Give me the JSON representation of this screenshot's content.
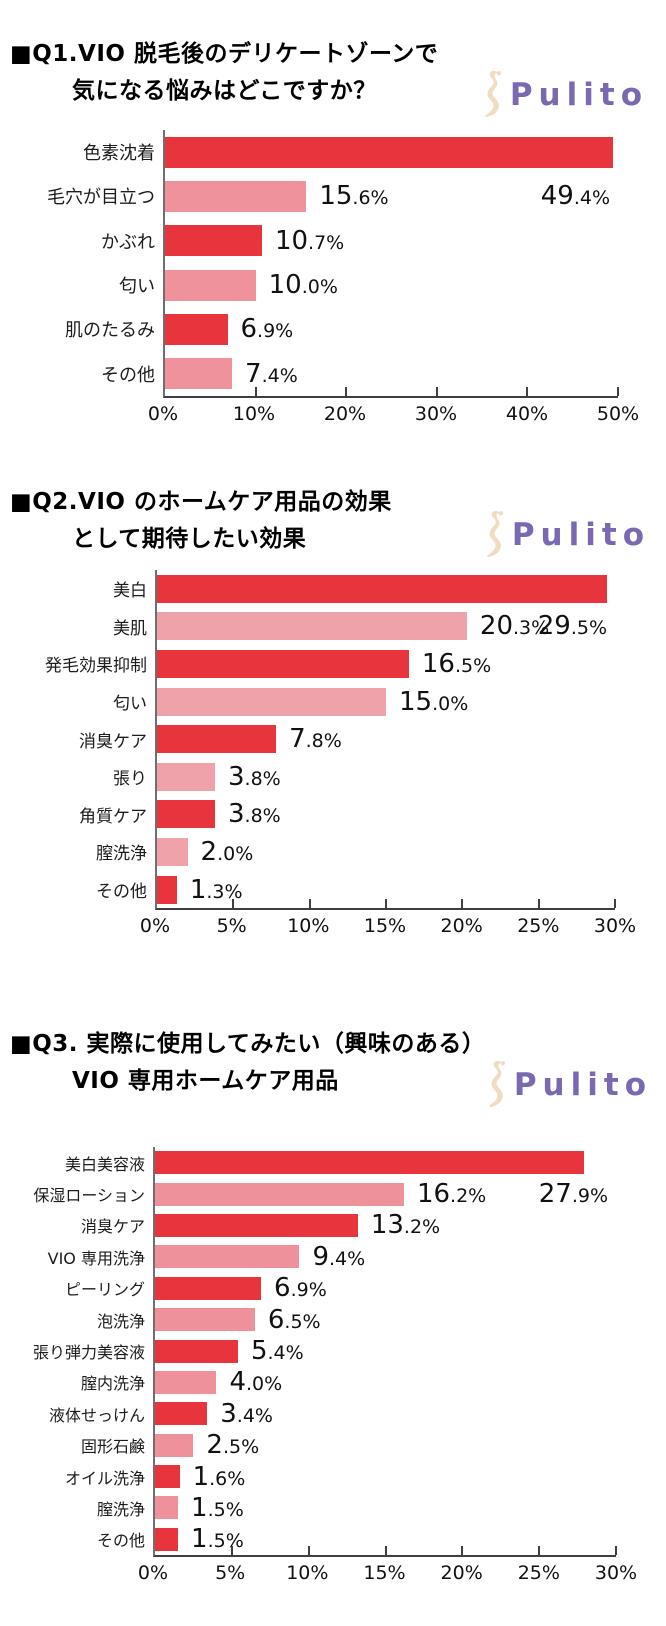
{
  "page": {
    "background": "#ffffff"
  },
  "brand": {
    "name": "Pulito",
    "text_color": "#7a68b3",
    "icon": "female-silhouette-icon",
    "icon_color": "#f0dcc0"
  },
  "style": {
    "bar_red": "#e8353d",
    "axis_line_color": "#3f3f3f",
    "axis_vline_color": "#6f6f6f",
    "text_color": "#111111"
  },
  "chart_data": [
    {
      "type": "bar",
      "orientation": "horizontal",
      "title_lines": [
        "■Q1.VIO 脱毛後のデリケートゾーンで",
        "気になる悩みはどこですか？"
      ],
      "categories": [
        "色素沈着",
        "毛穴が目立つ",
        "かぶれ",
        "匂い",
        "肌のたるみ",
        "その他"
      ],
      "values": [
        49.4,
        15.6,
        10.7,
        10.0,
        6.9,
        7.4
      ],
      "value_labels": [
        "49.4%",
        "15.6%",
        "10.7%",
        "10.0%",
        "6.9%",
        "7.4%"
      ],
      "xlim": [
        0,
        50
      ],
      "xticks": [
        "0%",
        "10%",
        "20%",
        "30%",
        "40%",
        "50%"
      ],
      "grid": false,
      "legend": false,
      "bar_color_odd": "#e8353d",
      "bar_color_even": "#f0929c"
    },
    {
      "type": "bar",
      "orientation": "horizontal",
      "title_lines": [
        "■Q2.VIO のホームケア用品の効果",
        "として期待したい効果"
      ],
      "categories": [
        "美白",
        "美肌",
        "発毛効果抑制",
        "匂い",
        "消臭ケア",
        "張り",
        "角質ケア",
        "膣洗浄",
        "その他"
      ],
      "values": [
        29.5,
        20.3,
        16.5,
        15.0,
        7.8,
        3.8,
        3.8,
        2.0,
        1.3
      ],
      "value_labels": [
        "29.5%",
        "20.3%",
        "16.5%",
        "15.0%",
        "7.8%",
        "3.8%",
        "3.8%",
        "2.0%",
        "1.3%"
      ],
      "xlim": [
        0,
        30
      ],
      "xticks": [
        "0%",
        "5%",
        "10%",
        "15%",
        "20%",
        "25%",
        "30%"
      ],
      "grid": false,
      "legend": false,
      "bar_color_odd": "#e8353d",
      "bar_color_even": "#f0a2aa"
    },
    {
      "type": "bar",
      "orientation": "horizontal",
      "title_lines": [
        "■Q3. 実際に使用してみたい（興味のある）",
        "VIO 専用ホームケア用品"
      ],
      "categories": [
        "美白美容液",
        "保湿ローション",
        "消臭ケア",
        "VIO 専用洗浄",
        "ピーリング",
        "泡洗浄",
        "張り弾力美容液",
        "膣内洗浄",
        "液体せっけん",
        "固形石鹸",
        "オイル洗浄",
        "膣洗浄",
        "その他"
      ],
      "values": [
        27.9,
        16.2,
        13.2,
        9.4,
        6.9,
        6.5,
        5.4,
        4.0,
        3.4,
        2.5,
        1.6,
        1.5,
        1.5
      ],
      "value_labels": [
        "27.9%",
        "16.2%",
        "13.2%",
        "9.4%",
        "6.9%",
        "6.5%",
        "5.4%",
        "4.0%",
        "3.4%",
        "2.5%",
        "1.6%",
        "1.5%",
        "1.5%"
      ],
      "xlim": [
        0,
        30
      ],
      "xticks": [
        "0%",
        "5%",
        "10%",
        "15%",
        "20%",
        "25%",
        "30%"
      ],
      "grid": false,
      "legend": false,
      "bar_color_odd": "#e8353d",
      "bar_color_even": "#ee919b"
    }
  ]
}
